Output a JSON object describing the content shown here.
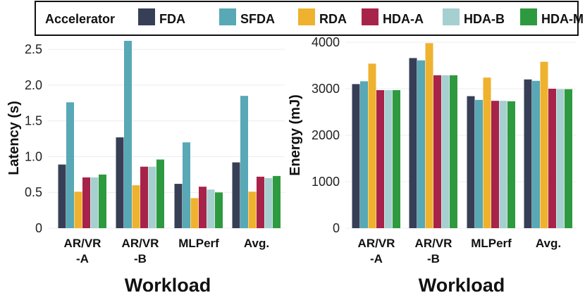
{
  "legend": {
    "title": "Accelerator"
  },
  "chart_data": [
    {
      "type": "bar",
      "categories": [
        "AR/VR\n-A",
        "AR/VR\n-B",
        "MLPerf",
        "Avg."
      ],
      "ylabel": "Latency (s)",
      "xlabel": "Workload",
      "ylim": [
        0,
        2.6
      ],
      "yticks": [
        0,
        0.5,
        1.0,
        1.5,
        2.0,
        2.5
      ],
      "ytick_labels": [
        "0",
        "0.5",
        "1.0",
        "1.5",
        "2.0",
        "2.5"
      ],
      "grid": true,
      "series": [
        {
          "name": "FDA",
          "color": "#363f56",
          "values": [
            0.89,
            1.27,
            0.62,
            0.92
          ]
        },
        {
          "name": "SFDA",
          "color": "#58a8b6",
          "values": [
            1.76,
            2.62,
            1.2,
            1.85
          ]
        },
        {
          "name": "RDA",
          "color": "#eeb22f",
          "values": [
            0.51,
            0.6,
            0.42,
            0.51
          ]
        },
        {
          "name": "HDA-A",
          "color": "#a8234a",
          "values": [
            0.71,
            0.86,
            0.58,
            0.72
          ]
        },
        {
          "name": "HDA-B",
          "color": "#a6cfcf",
          "values": [
            0.71,
            0.86,
            0.54,
            0.7
          ]
        },
        {
          "name": "HDA-M",
          "color": "#2e9a3f",
          "values": [
            0.75,
            0.96,
            0.5,
            0.73
          ]
        }
      ]
    },
    {
      "type": "bar",
      "categories": [
        "AR/VR\n-A",
        "AR/VR\n-B",
        "MLPerf",
        "Avg."
      ],
      "ylabel": "Energy (mJ)",
      "xlabel": "Workload",
      "ylim": [
        0,
        4000
      ],
      "yticks": [
        0,
        1000,
        2000,
        3000,
        4000
      ],
      "ytick_labels": [
        "0",
        "1000",
        "2000",
        "3000",
        "4000"
      ],
      "grid": true,
      "series": [
        {
          "name": "FDA",
          "color": "#363f56",
          "values": [
            3100,
            3660,
            2840,
            3200
          ]
        },
        {
          "name": "SFDA",
          "color": "#58a8b6",
          "values": [
            3160,
            3610,
            2760,
            3170
          ]
        },
        {
          "name": "RDA",
          "color": "#eeb22f",
          "values": [
            3540,
            3980,
            3240,
            3580
          ]
        },
        {
          "name": "HDA-A",
          "color": "#a8234a",
          "values": [
            2970,
            3290,
            2740,
            3000
          ]
        },
        {
          "name": "HDA-B",
          "color": "#a6cfcf",
          "values": [
            2970,
            3290,
            2740,
            2990
          ]
        },
        {
          "name": "HDA-M",
          "color": "#2e9a3f",
          "values": [
            2970,
            3290,
            2730,
            2990
          ]
        }
      ]
    }
  ]
}
